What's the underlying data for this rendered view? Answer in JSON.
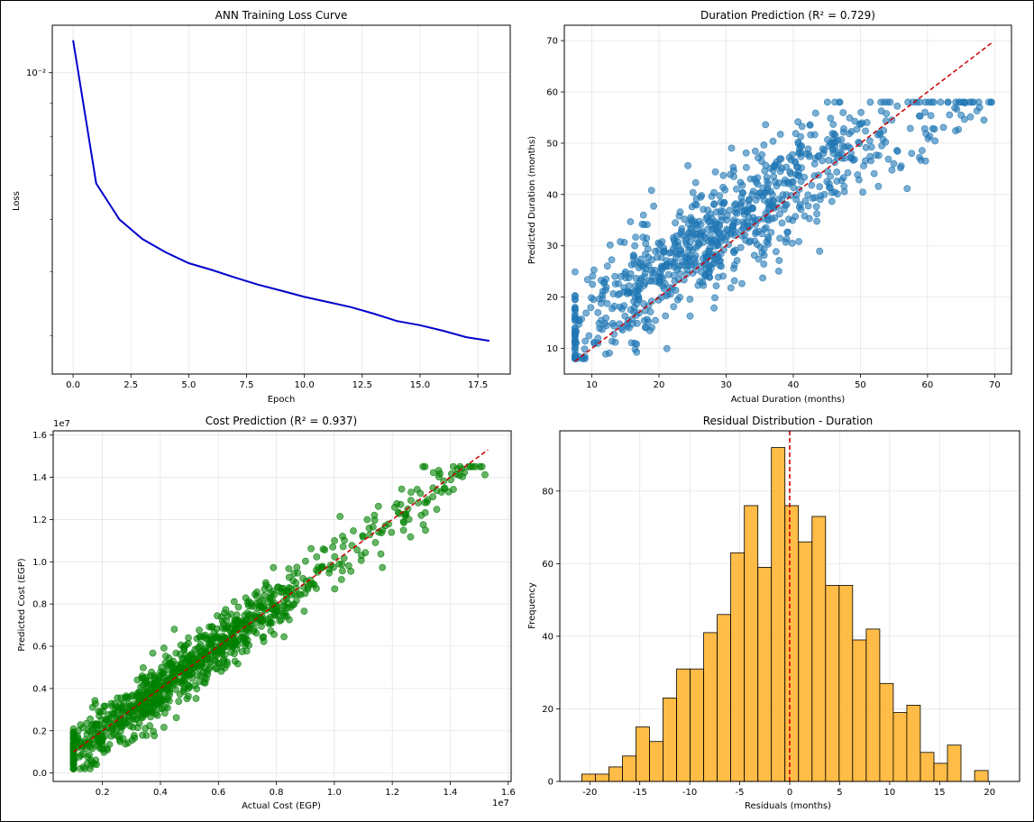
{
  "colors": {
    "loss_line": "#0000cc",
    "duration_points": "#1f77b4",
    "cost_points": "#008000",
    "histogram_bars": "#ffb027",
    "reference_line": "#cc0000",
    "grid": "#e6e6e6"
  },
  "chart_data": [
    {
      "id": "loss",
      "type": "line",
      "title": "ANN Training Loss Curve",
      "xlabel": "Epoch",
      "ylabel": "Loss",
      "yscale": "log",
      "grid": true,
      "xlim": [
        -0.9,
        18.9
      ],
      "ylim": [
        0.0035,
        0.0118
      ],
      "xticks": [
        0,
        2.5,
        5,
        7.5,
        10,
        12.5,
        15,
        17.5
      ],
      "xtick_labels": [
        "0.0",
        "2.5",
        "5.0",
        "7.5",
        "10.0",
        "12.5",
        "15.0",
        "17.5"
      ],
      "yticks": [
        0.01
      ],
      "ytick_labels": [
        "10⁻²"
      ],
      "x": [
        0,
        1,
        2,
        3,
        4,
        5,
        6,
        7,
        8,
        9,
        10,
        11,
        12,
        13,
        14,
        15,
        16,
        17,
        18
      ],
      "y": [
        0.0112,
        0.0068,
        0.006,
        0.0056,
        0.00535,
        0.00515,
        0.00503,
        0.0049,
        0.00478,
        0.00468,
        0.00458,
        0.0045,
        0.00442,
        0.00432,
        0.00421,
        0.00415,
        0.00407,
        0.00398,
        0.00393
      ]
    },
    {
      "id": "duration",
      "type": "scatter",
      "title": "Duration Prediction (R² = 0.729)",
      "xlabel": "Actual Duration (months)",
      "ylabel": "Predicted Duration (months)",
      "grid": true,
      "xlim": [
        5.9,
        72.5
      ],
      "ylim": [
        5,
        73
      ],
      "xticks": [
        10,
        20,
        30,
        40,
        50,
        60,
        70
      ],
      "yticks": [
        10,
        20,
        30,
        40,
        50,
        60,
        70
      ],
      "r_squared": 0.729,
      "n_points": 900,
      "point_generator": {
        "seed": 7,
        "x_min": 7.5,
        "x_max": 69.5,
        "x_mean": 30,
        "x_sd": 13,
        "intercept": 8.5,
        "slope": 0.84,
        "curve": -0.0035,
        "noise_sd": 5.5,
        "y_min": 8,
        "y_max": 58
      },
      "reference_line": {
        "x": [
          7.5,
          69.8
        ],
        "y": [
          7.5,
          69.8
        ],
        "style": "dashed"
      }
    },
    {
      "id": "cost",
      "type": "scatter",
      "title": "Cost Prediction (R² = 0.937)",
      "xlabel": "Actual Cost (EGP)",
      "ylabel": "Predicted Cost (EGP)",
      "x_offset_label": "1e7",
      "y_offset_label": "1e7",
      "grid": true,
      "xlim": [
        0.03,
        1.61
      ],
      "ylim": [
        -0.04,
        1.62
      ],
      "xticks": [
        0.2,
        0.4,
        0.6,
        0.8,
        1.0,
        1.2,
        1.4,
        1.6
      ],
      "xtick_labels": [
        "0.2",
        "0.4",
        "0.6",
        "0.8",
        "1.0",
        "1.2",
        "1.4",
        "1.6"
      ],
      "yticks": [
        0.0,
        0.2,
        0.4,
        0.6,
        0.8,
        1.0,
        1.2,
        1.4,
        1.6
      ],
      "ytick_labels": [
        "0.0",
        "0.2",
        "0.4",
        "0.6",
        "0.8",
        "1.0",
        "1.2",
        "1.4",
        "1.6"
      ],
      "r_squared": 0.937,
      "n_points": 1000,
      "point_generator": {
        "seed": 11,
        "x_min": 0.1,
        "x_max": 1.52,
        "x_mean": 0.45,
        "x_sd": 0.24,
        "intercept": 0.0,
        "slope": 1.0,
        "curve": 0.0,
        "noise_sd": 0.065,
        "y_min": 0.02,
        "y_max": 1.45
      },
      "reference_line": {
        "x": [
          0.1,
          1.53
        ],
        "y": [
          0.1,
          1.53
        ],
        "style": "dashed"
      }
    },
    {
      "id": "residuals",
      "type": "histogram",
      "title": "Residual Distribution - Duration",
      "xlabel": "Residuals (months)",
      "ylabel": "Frequency",
      "grid": true,
      "xlim": [
        -23,
        23
      ],
      "ylim": [
        0,
        96.6
      ],
      "xticks": [
        -20,
        -15,
        -10,
        -5,
        0,
        5,
        10,
        15,
        20
      ],
      "yticks": [
        0,
        20,
        40,
        60,
        80
      ],
      "bin_start": -20.8,
      "bin_width": 1.355,
      "counts": [
        2,
        2,
        4,
        7,
        15,
        11,
        23,
        31,
        31,
        41,
        46,
        63,
        76,
        59,
        92,
        76,
        66,
        73,
        54,
        54,
        39,
        42,
        27,
        19,
        21,
        8,
        5,
        10,
        0,
        3
      ],
      "reference_line": {
        "x": 0,
        "style": "dashed"
      }
    }
  ]
}
